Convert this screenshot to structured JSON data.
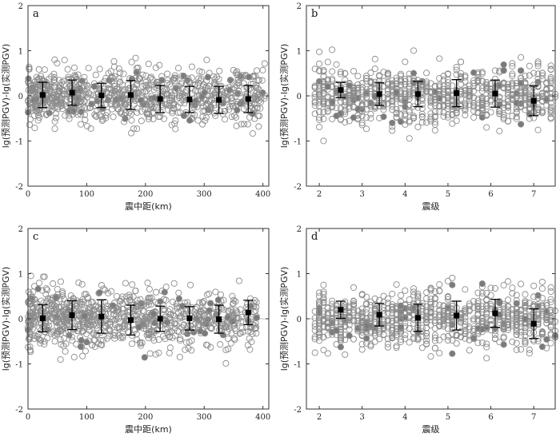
{
  "chart_data": [
    {
      "panel_label": "a",
      "type": "scatter",
      "xlabel": "震中距(km)",
      "ylabel": "lg(预测PGV)-lg(实测PGV)",
      "xlim": [
        0,
        410
      ],
      "ylim": [
        -2,
        2
      ],
      "xticks": [
        0,
        100,
        200,
        300,
        400
      ],
      "yticks": [
        -2,
        -1,
        0,
        1,
        2
      ],
      "scatter_band": {
        "x_range": [
          0,
          405
        ],
        "center": 0.0,
        "spread": 0.3
      },
      "binned_means": [
        {
          "x": 25,
          "y": 0.02,
          "err": 0.28
        },
        {
          "x": 75,
          "y": 0.07,
          "err": 0.28
        },
        {
          "x": 125,
          "y": 0.01,
          "err": 0.27
        },
        {
          "x": 175,
          "y": 0.02,
          "err": 0.32
        },
        {
          "x": 225,
          "y": -0.07,
          "err": 0.3
        },
        {
          "x": 275,
          "y": -0.08,
          "err": 0.29
        },
        {
          "x": 325,
          "y": -0.09,
          "err": 0.3
        },
        {
          "x": 375,
          "y": -0.07,
          "err": 0.3
        }
      ]
    },
    {
      "panel_label": "b",
      "type": "scatter",
      "xlabel": "震级",
      "ylabel": "lg(预测PGV)-lg(实测PGV)",
      "xlim": [
        1.7,
        7.5
      ],
      "ylim": [
        -2,
        2
      ],
      "xticks": [
        2,
        3,
        4,
        5,
        6,
        7
      ],
      "yticks": [
        -2,
        -1,
        0,
        1,
        2
      ],
      "scatter_band": {
        "x_range": [
          1.9,
          7.5
        ],
        "center": 0.0,
        "spread": 0.3,
        "columnar": true
      },
      "binned_means": [
        {
          "x": 2.5,
          "y": 0.13,
          "err": 0.17
        },
        {
          "x": 3.4,
          "y": 0.04,
          "err": 0.25
        },
        {
          "x": 4.3,
          "y": 0.04,
          "err": 0.28
        },
        {
          "x": 5.2,
          "y": 0.06,
          "err": 0.3
        },
        {
          "x": 6.1,
          "y": 0.05,
          "err": 0.3
        },
        {
          "x": 7.0,
          "y": -0.11,
          "err": 0.33
        }
      ]
    },
    {
      "panel_label": "c",
      "type": "scatter",
      "xlabel": "震中距(km)",
      "ylabel": "lg(预测PGV)-lg(实测PGV)",
      "xlim": [
        0,
        410
      ],
      "ylim": [
        -2,
        2
      ],
      "xticks": [
        0,
        100,
        200,
        300,
        400
      ],
      "yticks": [
        -2,
        -1,
        0,
        1,
        2
      ],
      "scatter_band": {
        "x_range": [
          0,
          390
        ],
        "center": 0.0,
        "spread": 0.32
      },
      "binned_means": [
        {
          "x": 25,
          "y": 0.01,
          "err": 0.3
        },
        {
          "x": 75,
          "y": 0.08,
          "err": 0.32
        },
        {
          "x": 125,
          "y": 0.05,
          "err": 0.37
        },
        {
          "x": 175,
          "y": -0.03,
          "err": 0.33
        },
        {
          "x": 225,
          "y": 0.0,
          "err": 0.28
        },
        {
          "x": 275,
          "y": 0.01,
          "err": 0.26
        },
        {
          "x": 325,
          "y": -0.01,
          "err": 0.31
        },
        {
          "x": 375,
          "y": 0.14,
          "err": 0.27
        }
      ]
    },
    {
      "panel_label": "d",
      "type": "scatter",
      "xlabel": "震级",
      "ylabel": "lg(预测PGV)-lg(实测PGV)",
      "xlim": [
        1.7,
        7.5
      ],
      "ylim": [
        -2,
        2
      ],
      "xticks": [
        2,
        3,
        4,
        5,
        6,
        7
      ],
      "yticks": [
        -2,
        -1,
        0,
        1,
        2
      ],
      "scatter_band": {
        "x_range": [
          1.9,
          7.5
        ],
        "center": 0.0,
        "spread": 0.3,
        "columnar": true
      },
      "binned_means": [
        {
          "x": 2.5,
          "y": 0.2,
          "err": 0.19
        },
        {
          "x": 3.4,
          "y": 0.09,
          "err": 0.25
        },
        {
          "x": 4.3,
          "y": 0.02,
          "err": 0.3
        },
        {
          "x": 5.2,
          "y": 0.07,
          "err": 0.32
        },
        {
          "x": 6.1,
          "y": 0.12,
          "err": 0.31
        },
        {
          "x": 7.0,
          "y": -0.11,
          "err": 0.33
        }
      ]
    }
  ],
  "colors": {
    "scatter_stroke": "#8c8c8c",
    "scatter_fill": "#bdbdbd",
    "marker": "#000000",
    "axis": "#333333",
    "zero_line": "#bdbdbd"
  }
}
